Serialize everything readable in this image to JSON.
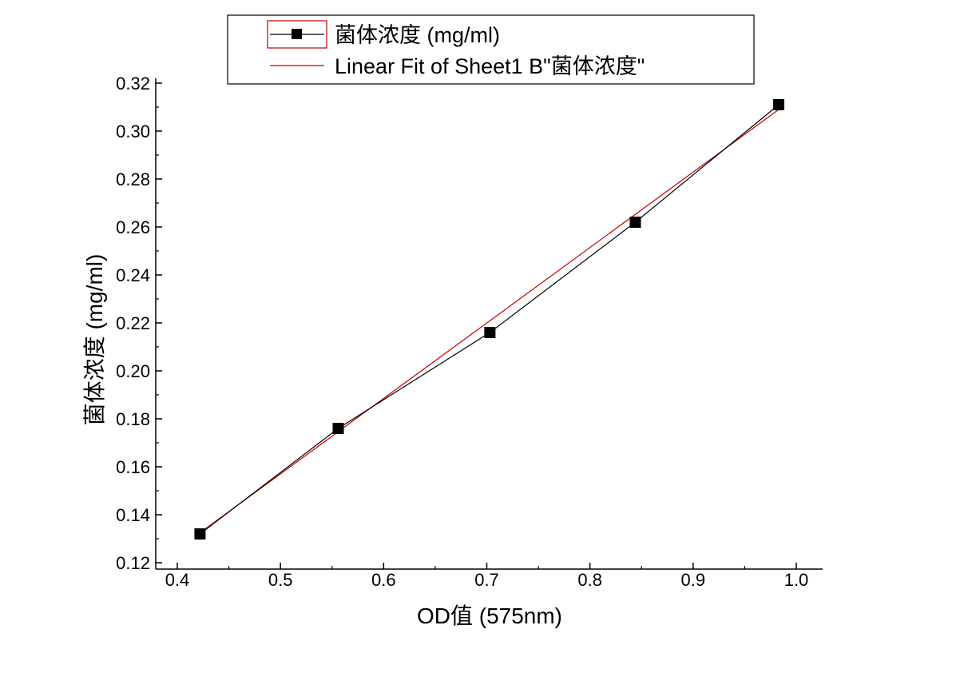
{
  "chart_data": {
    "type": "line",
    "title": "",
    "xlabel": "OD值 (575nm)",
    "ylabel": "菌体浓度 (mg/ml)",
    "xlim": [
      0.4,
      1.0
    ],
    "ylim": [
      0.12,
      0.32
    ],
    "x_ticks": [
      "0.4",
      "0.5",
      "0.6",
      "0.7",
      "0.8",
      "0.9",
      "1.0"
    ],
    "y_ticks": [
      "0.12",
      "0.14",
      "0.16",
      "0.18",
      "0.20",
      "0.22",
      "0.24",
      "0.26",
      "0.28",
      "0.30",
      "0.32"
    ],
    "grid": false,
    "legend_position": "top",
    "series": [
      {
        "name": "菌体浓度 (mg/ml)",
        "kind": "line+square-markers",
        "color": "#000000",
        "x": [
          0.422,
          0.556,
          0.703,
          0.844,
          0.983
        ],
        "y": [
          0.132,
          0.176,
          0.216,
          0.262,
          0.311
        ]
      },
      {
        "name": "Linear Fit of Sheet1 B\"菌体浓度\"",
        "kind": "fit-line",
        "color": "#c00000",
        "x": [
          0.422,
          0.983
        ],
        "y": [
          0.1325,
          0.309
        ]
      }
    ]
  }
}
